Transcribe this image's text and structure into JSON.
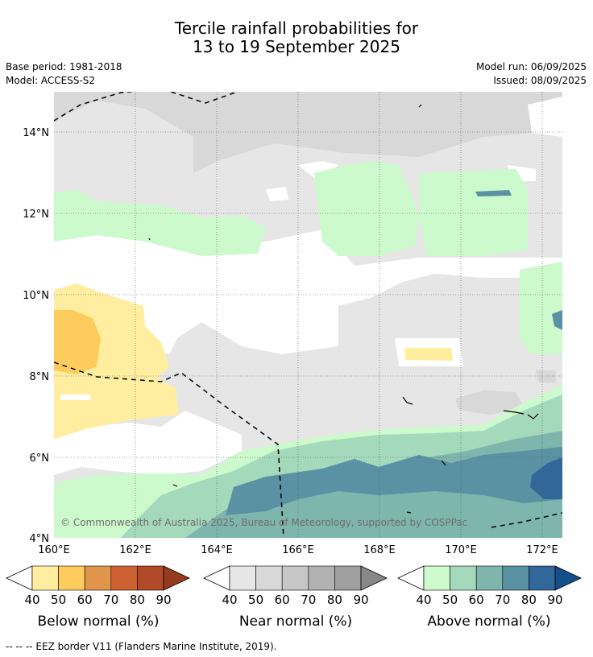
{
  "header": {
    "title_line1": "Tercile rainfall probabilities for",
    "title_line2": "13 to 19 September 2025",
    "base_period": "Base period: 1981-2018",
    "model": "Model: ACCESS-S2",
    "model_run": "Model run: 06/09/2025",
    "issued": "Issued: 08/09/2025"
  },
  "map": {
    "lat_labels": [
      "14°N",
      "12°N",
      "10°N",
      "8°N",
      "6°N",
      "4°N"
    ],
    "lon_labels": [
      "160°E",
      "162°E",
      "164°E",
      "166°E",
      "168°E",
      "170°E",
      "172°E"
    ],
    "copyright": "© Commonwealth of Australia 2025, Bureau of Meteorology, supported by COSPPac"
  },
  "colorbars": {
    "ticks": [
      "40",
      "50",
      "60",
      "70",
      "80",
      "90"
    ],
    "below": {
      "label": "Below normal (%)",
      "colors": [
        "#ffeda0",
        "#fecc5c",
        "#e0954a",
        "#ce6134",
        "#b04a28",
        "#963a1e"
      ]
    },
    "near": {
      "label": "Near normal (%)",
      "colors": [
        "#e6e6e6",
        "#d8d8d8",
        "#c6c6c6",
        "#b2b2b2",
        "#a0a0a0",
        "#888888"
      ]
    },
    "above": {
      "label": "Above normal (%)",
      "colors": [
        "#ccfacc",
        "#a5d9bb",
        "#7eb5ad",
        "#5a91a3",
        "#326899",
        "#134f8a"
      ]
    }
  },
  "footnote": "--  --  -- EEZ border V11 (Flanders Marine Institute, 2019)."
}
